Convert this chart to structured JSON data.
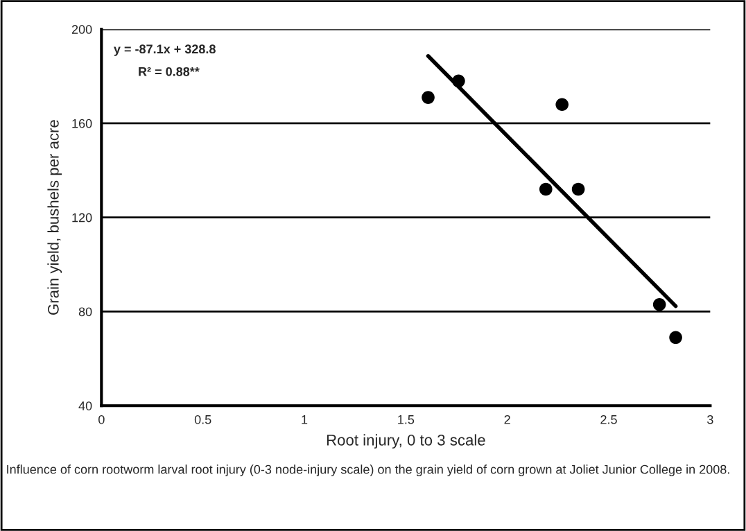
{
  "chart_data": {
    "type": "scatter",
    "xlabel": "Root injury, 0 to 3 scale",
    "ylabel": "Grain yield, bushels per acre",
    "series": [
      {
        "color": "#000000",
        "marker": "circle",
        "x": [
          1.61,
          1.76,
          2.27,
          2.19,
          2.35,
          2.75,
          2.83
        ],
        "values": [
          171,
          178,
          168,
          132,
          132,
          83,
          69
        ]
      },
      {
        "type": "line",
        "color": "#000000",
        "marker": "none",
        "x": [
          1.61,
          2.83
        ],
        "values": [
          188.6,
          82.3
        ]
      }
    ],
    "xlim": [
      0,
      3
    ],
    "xticks": [
      0,
      0.5,
      1,
      1.5,
      2,
      2.5,
      3
    ],
    "ylim": [
      40,
      200
    ],
    "yticks": [
      40,
      80,
      120,
      160,
      200
    ],
    "grid": "y",
    "legend": false,
    "annotations": [
      "y = -87.1x + 328.8",
      "R² = 0.88**",
      "Influence of corn rootworm larval root injury (0-3 node-injury scale) on the grain yield of corn grown at Joliet Junior College in 2008."
    ]
  }
}
